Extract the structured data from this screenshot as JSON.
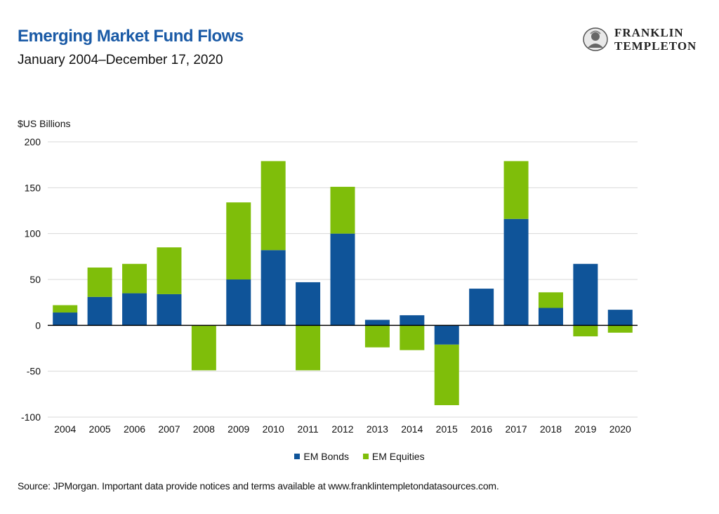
{
  "header": {
    "title": "Emerging Market Fund Flows",
    "subtitle": "January 2004–December 17, 2020"
  },
  "logo": {
    "line1": "FRANKLIN",
    "line2": "TEMPLETON"
  },
  "footer": {
    "source": "Source: JPMorgan. Important data provide notices and terms available at www.franklintempletondatasources.com."
  },
  "colors": {
    "bonds": "#0f5499",
    "equities": "#7fbe0a",
    "title": "#1a5aa6",
    "grid": "#d9d9d9",
    "axis": "#000000"
  },
  "chart_data": {
    "type": "bar",
    "stacked": true,
    "title": "Emerging Market Fund Flows",
    "subtitle": "January 2004–December 17, 2020",
    "ylabel": "$US Billions",
    "xlabel": "",
    "ylim": [
      -100,
      200
    ],
    "yticks": [
      -100,
      -50,
      0,
      50,
      100,
      150,
      200
    ],
    "grid": true,
    "legend_position": "bottom-center",
    "categories": [
      "2004",
      "2005",
      "2006",
      "2007",
      "2008",
      "2009",
      "2010",
      "2011",
      "2012",
      "2013",
      "2014",
      "2015",
      "2016",
      "2017",
      "2018",
      "2019",
      "2020"
    ],
    "series": [
      {
        "name": "EM Bonds",
        "values": [
          14,
          31,
          35,
          34,
          0,
          50,
          82,
          47,
          100,
          6,
          11,
          -21,
          40,
          116,
          19,
          67,
          17
        ]
      },
      {
        "name": "EM Equities",
        "values": [
          8,
          32,
          32,
          51,
          -49,
          84,
          97,
          -49,
          51,
          -24,
          -27,
          -66,
          0,
          63,
          17,
          -12,
          -8
        ]
      }
    ]
  }
}
